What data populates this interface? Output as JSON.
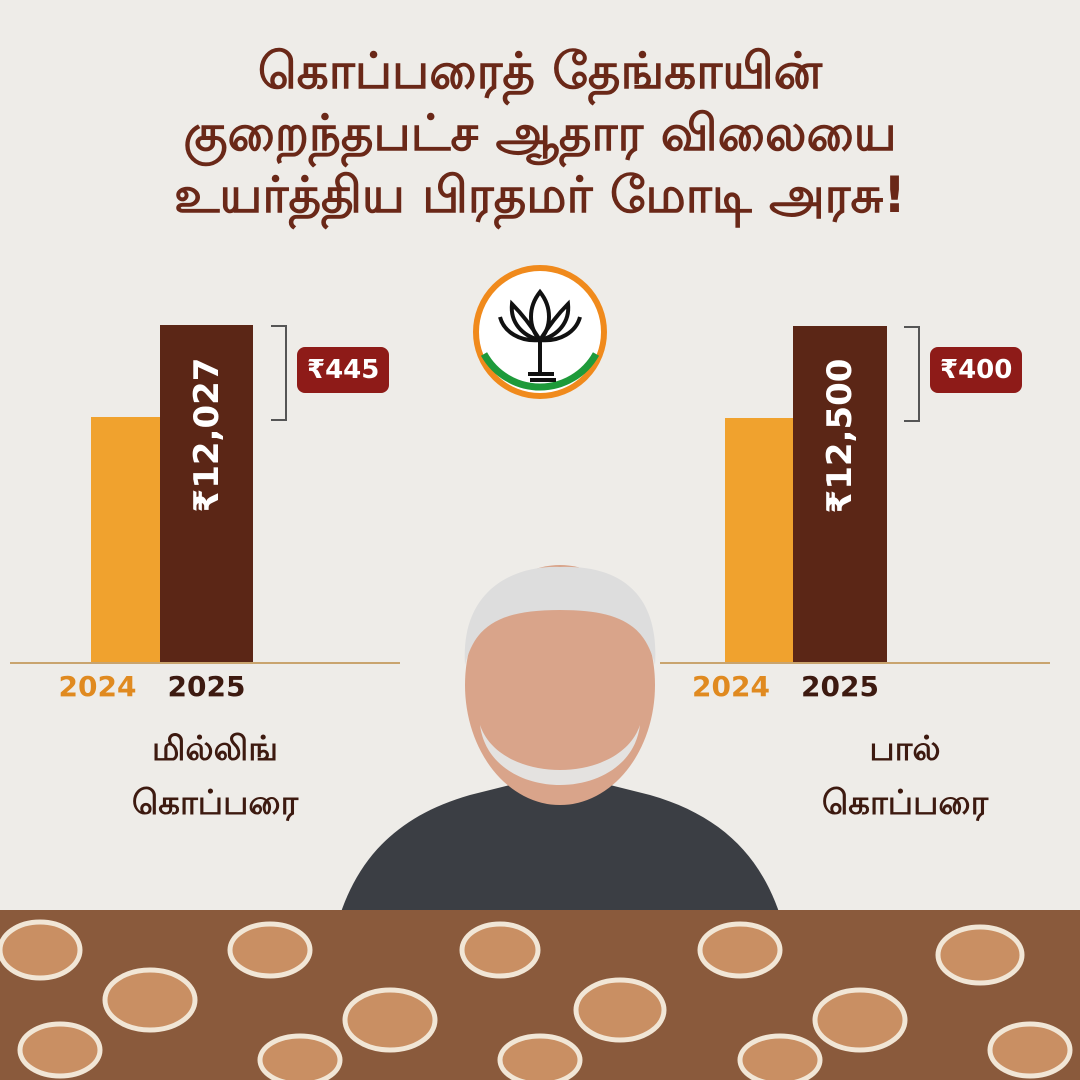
{
  "title_lines": [
    "கொப்பரைத் தேங்காயின்",
    "குறைந்தபட்ச ஆதார விலையை",
    "உயர்த்திய பிரதமர் மோடி அரசு!"
  ],
  "chart_data": [
    {
      "type": "bar",
      "label": "மில்லிங் கொப்பரை",
      "categories": [
        "2024",
        "2025"
      ],
      "values": [
        11582,
        12027
      ],
      "value_labels": [
        null,
        "₹12,027"
      ],
      "colors": [
        "#f0a22e",
        "#5b2616"
      ],
      "annotation": "₹445",
      "ylim": [
        10400,
        12150
      ]
    },
    {
      "type": "bar",
      "label": "பால் கொப்பரை",
      "categories": [
        "2024",
        "2025"
      ],
      "values": [
        12100,
        12500
      ],
      "value_labels": [
        null,
        "₹12,500"
      ],
      "colors": [
        "#f0a22e",
        "#5b2616"
      ],
      "annotation": "₹400",
      "ylim": [
        11040,
        12615
      ]
    }
  ]
}
